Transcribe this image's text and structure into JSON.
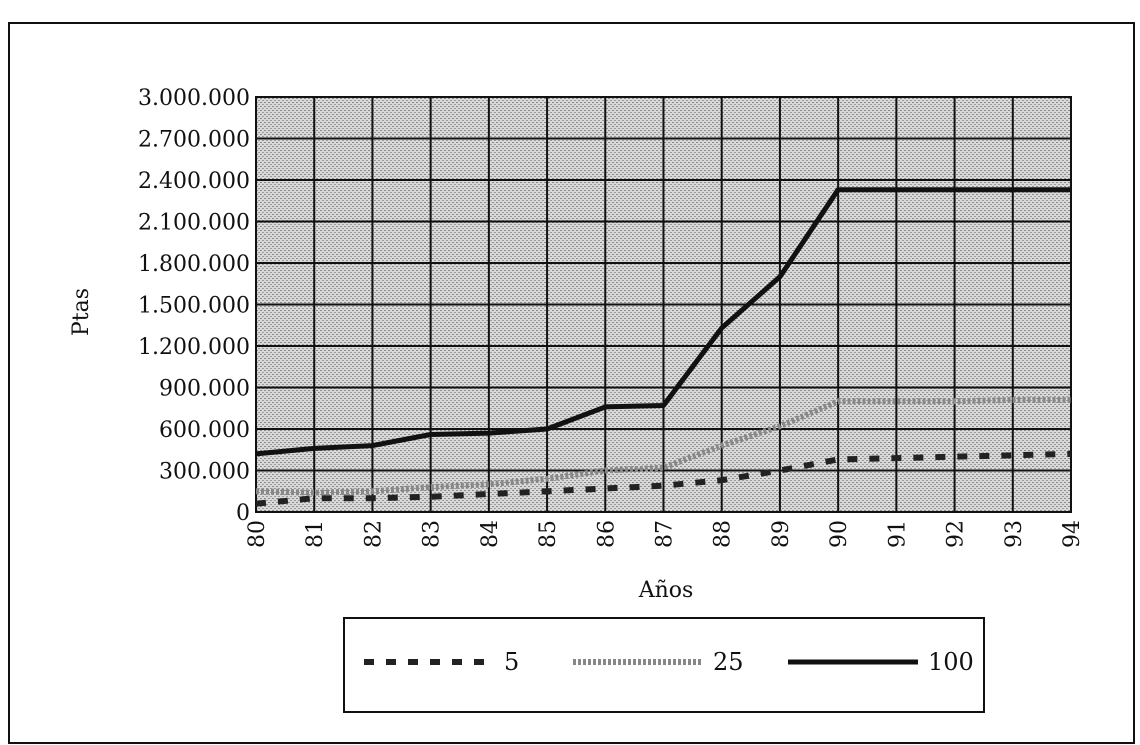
{
  "chart_data": {
    "type": "line",
    "title": "",
    "xlabel": "Años",
    "ylabel": "Ptas",
    "x": [
      "80",
      "81",
      "82",
      "83",
      "84",
      "85",
      "86",
      "87",
      "88",
      "89",
      "90",
      "91",
      "92",
      "93",
      "94"
    ],
    "y_ticks": [
      "0",
      "300.000",
      "600.000",
      "900.000",
      "1.200.000",
      "1.500.000",
      "1.800.000",
      "2.100.000",
      "2.400.000",
      "2.700.000",
      "3.000.000"
    ],
    "ylim": [
      0,
      3000000
    ],
    "grid": true,
    "legend_position": "bottom",
    "series": [
      {
        "name": "5",
        "style": "dashed",
        "color": "#222222",
        "values": [
          60000,
          100000,
          100000,
          110000,
          130000,
          150000,
          170000,
          190000,
          230000,
          300000,
          380000,
          390000,
          400000,
          410000,
          420000
        ]
      },
      {
        "name": "25",
        "style": "dotted",
        "color": "#888888",
        "values": [
          150000,
          140000,
          150000,
          180000,
          200000,
          240000,
          300000,
          320000,
          480000,
          620000,
          800000,
          800000,
          800000,
          810000,
          810000
        ]
      },
      {
        "name": "100",
        "style": "solid",
        "color": "#111111",
        "values": [
          420000,
          460000,
          480000,
          560000,
          570000,
          600000,
          760000,
          770000,
          1330000,
          1700000,
          2330000,
          2330000,
          2330000,
          2330000,
          2330000
        ]
      }
    ]
  }
}
